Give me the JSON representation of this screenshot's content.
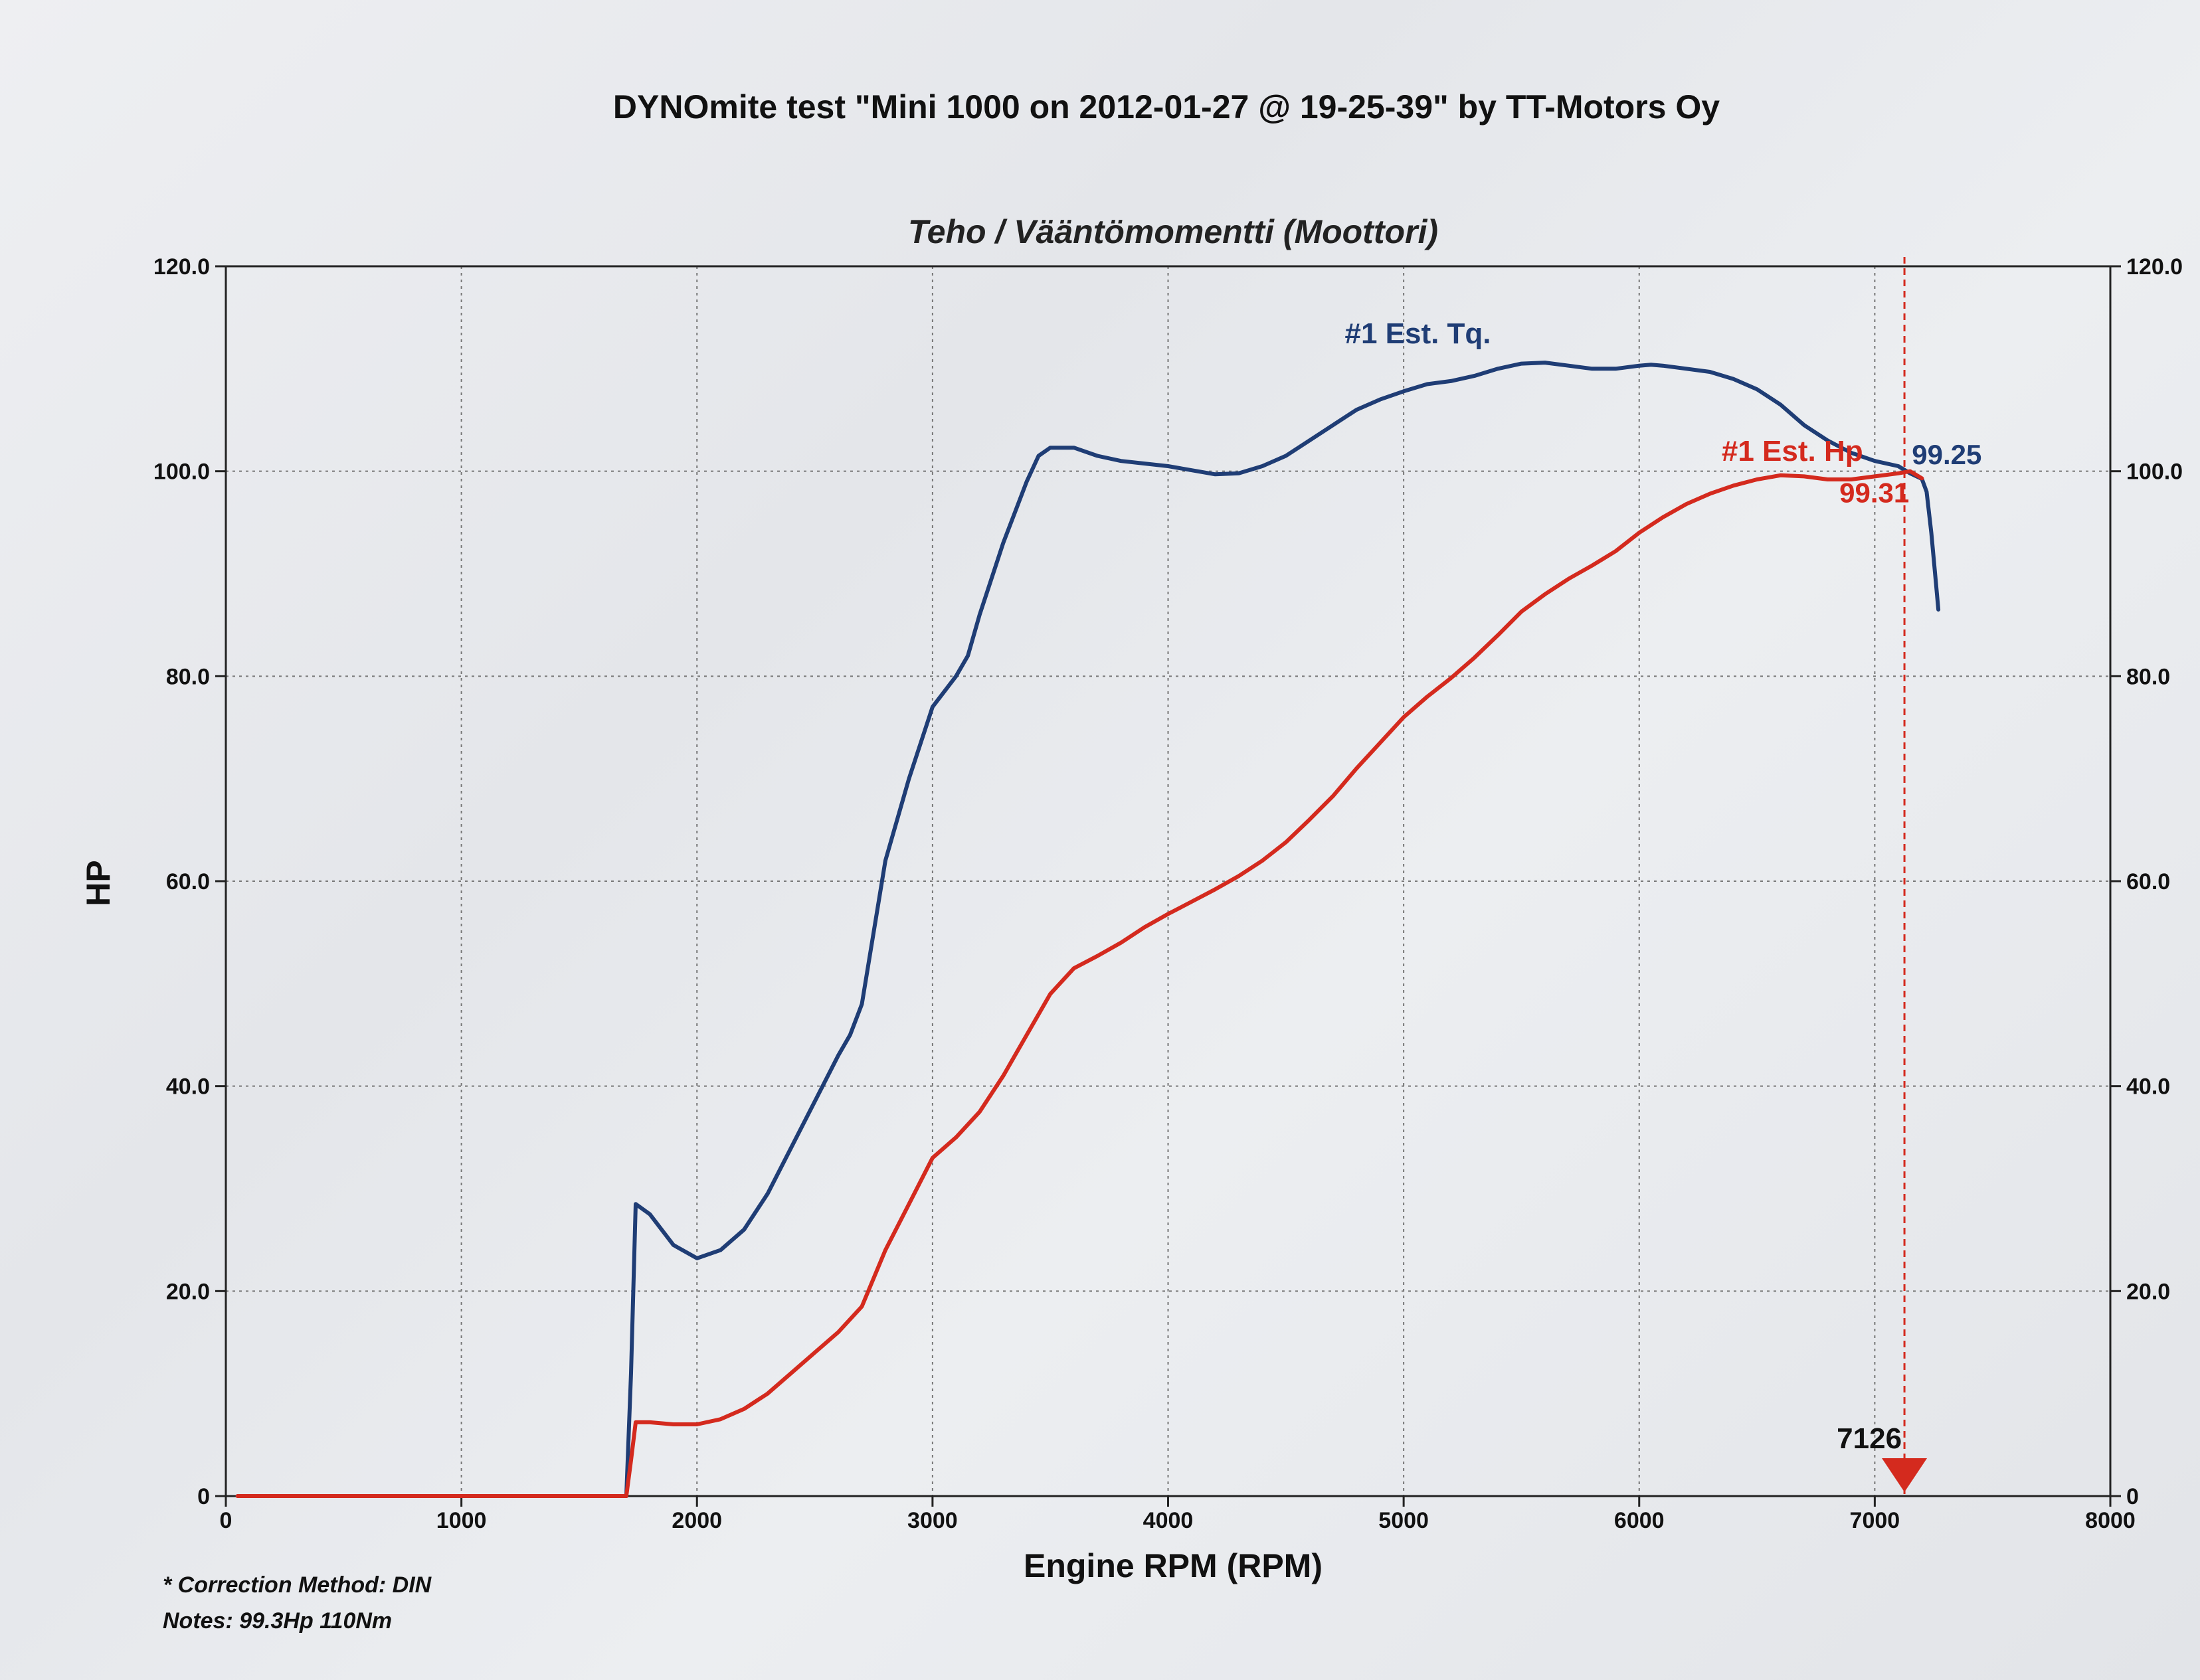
{
  "chart_data": {
    "type": "line",
    "title": "DYNOmite test \"Mini 1000 on 2012-01-27 @ 19-25-39\" by TT-Motors Oy",
    "subtitle": "Teho / Vääntömomentti (Moottori)",
    "xlabel": "Engine RPM (RPM)",
    "ylabel": "HP",
    "xlim": [
      0,
      8000
    ],
    "ylim": [
      0,
      120
    ],
    "y2lim": [
      0,
      120
    ],
    "grid": true,
    "x_ticks": [
      "0",
      "1000",
      "2000",
      "3000",
      "4000",
      "5000",
      "6000",
      "7000",
      "8000"
    ],
    "y_ticks": [
      "0",
      "20.0",
      "40.0",
      "60.0",
      "80.0",
      "100.0",
      "120.0"
    ],
    "y2_ticks": [
      "0",
      "20.0",
      "40.0",
      "60.0",
      "80.0",
      "100.0",
      "120.0"
    ],
    "series": [
      {
        "name": "#1 Est. Tq.",
        "color": "#1f3d75",
        "peak_label": "99.25",
        "points": [
          [
            50,
            0
          ],
          [
            1700,
            0
          ],
          [
            1720,
            12
          ],
          [
            1740,
            28.5
          ],
          [
            1800,
            27.5
          ],
          [
            1900,
            24.5
          ],
          [
            2000,
            23.2
          ],
          [
            2100,
            24
          ],
          [
            2200,
            26
          ],
          [
            2300,
            29.5
          ],
          [
            2400,
            34
          ],
          [
            2500,
            38.5
          ],
          [
            2600,
            43
          ],
          [
            2650,
            45
          ],
          [
            2700,
            48
          ],
          [
            2750,
            55
          ],
          [
            2800,
            62
          ],
          [
            2900,
            70
          ],
          [
            3000,
            77
          ],
          [
            3100,
            80
          ],
          [
            3150,
            82
          ],
          [
            3200,
            86
          ],
          [
            3300,
            93
          ],
          [
            3400,
            99
          ],
          [
            3450,
            101.5
          ],
          [
            3500,
            102.3
          ],
          [
            3600,
            102.3
          ],
          [
            3700,
            101.5
          ],
          [
            3800,
            101
          ],
          [
            4000,
            100.5
          ],
          [
            4200,
            99.7
          ],
          [
            4300,
            99.8
          ],
          [
            4400,
            100.5
          ],
          [
            4500,
            101.5
          ],
          [
            4600,
            103
          ],
          [
            4700,
            104.5
          ],
          [
            4800,
            106
          ],
          [
            4900,
            107
          ],
          [
            5000,
            107.8
          ],
          [
            5100,
            108.5
          ],
          [
            5200,
            108.8
          ],
          [
            5300,
            109.3
          ],
          [
            5400,
            110
          ],
          [
            5500,
            110.5
          ],
          [
            5600,
            110.6
          ],
          [
            5700,
            110.3
          ],
          [
            5800,
            110
          ],
          [
            5900,
            110
          ],
          [
            6000,
            110.3
          ],
          [
            6050,
            110.4
          ],
          [
            6100,
            110.3
          ],
          [
            6200,
            110
          ],
          [
            6300,
            109.7
          ],
          [
            6400,
            109
          ],
          [
            6500,
            108
          ],
          [
            6600,
            106.5
          ],
          [
            6700,
            104.5
          ],
          [
            6800,
            103
          ],
          [
            6900,
            101.8
          ],
          [
            7000,
            101
          ],
          [
            7100,
            100.5
          ],
          [
            7150,
            99.8
          ],
          [
            7200,
            99.25
          ],
          [
            7220,
            98
          ],
          [
            7240,
            94
          ],
          [
            7260,
            89
          ],
          [
            7270,
            86.5
          ]
        ]
      },
      {
        "name": "#1 Est. Hp",
        "color": "#d42a1e",
        "peak_label": "99.31",
        "points": [
          [
            50,
            0
          ],
          [
            1700,
            0
          ],
          [
            1720,
            3.5
          ],
          [
            1740,
            7.2
          ],
          [
            1800,
            7.2
          ],
          [
            1900,
            7
          ],
          [
            2000,
            7
          ],
          [
            2100,
            7.5
          ],
          [
            2200,
            8.5
          ],
          [
            2300,
            10
          ],
          [
            2400,
            12
          ],
          [
            2500,
            14
          ],
          [
            2600,
            16
          ],
          [
            2700,
            18.5
          ],
          [
            2800,
            24
          ],
          [
            2900,
            28.5
          ],
          [
            3000,
            33
          ],
          [
            3100,
            35
          ],
          [
            3200,
            37.5
          ],
          [
            3300,
            41
          ],
          [
            3400,
            45
          ],
          [
            3500,
            49
          ],
          [
            3600,
            51.5
          ],
          [
            3700,
            52.7
          ],
          [
            3800,
            54
          ],
          [
            3900,
            55.5
          ],
          [
            4000,
            56.8
          ],
          [
            4100,
            58
          ],
          [
            4200,
            59.2
          ],
          [
            4300,
            60.5
          ],
          [
            4400,
            62
          ],
          [
            4500,
            63.8
          ],
          [
            4600,
            66
          ],
          [
            4700,
            68.3
          ],
          [
            4800,
            71
          ],
          [
            4900,
            73.5
          ],
          [
            5000,
            76
          ],
          [
            5100,
            78
          ],
          [
            5200,
            79.8
          ],
          [
            5300,
            81.8
          ],
          [
            5400,
            84
          ],
          [
            5500,
            86.3
          ],
          [
            5600,
            88
          ],
          [
            5700,
            89.5
          ],
          [
            5800,
            90.8
          ],
          [
            5900,
            92.2
          ],
          [
            6000,
            94
          ],
          [
            6100,
            95.5
          ],
          [
            6200,
            96.8
          ],
          [
            6300,
            97.8
          ],
          [
            6400,
            98.6
          ],
          [
            6500,
            99.2
          ],
          [
            6600,
            99.6
          ],
          [
            6700,
            99.5
          ],
          [
            6800,
            99.2
          ],
          [
            6900,
            99.2
          ],
          [
            7000,
            99.5
          ],
          [
            7100,
            99.8
          ],
          [
            7150,
            100
          ],
          [
            7200,
            99.31
          ]
        ]
      }
    ],
    "marker": {
      "x": 7126,
      "label": "7126",
      "color": "#d42a1e"
    },
    "notes": [
      "* Correction Method: DIN",
      "Notes: 99.3Hp 110Nm"
    ]
  }
}
